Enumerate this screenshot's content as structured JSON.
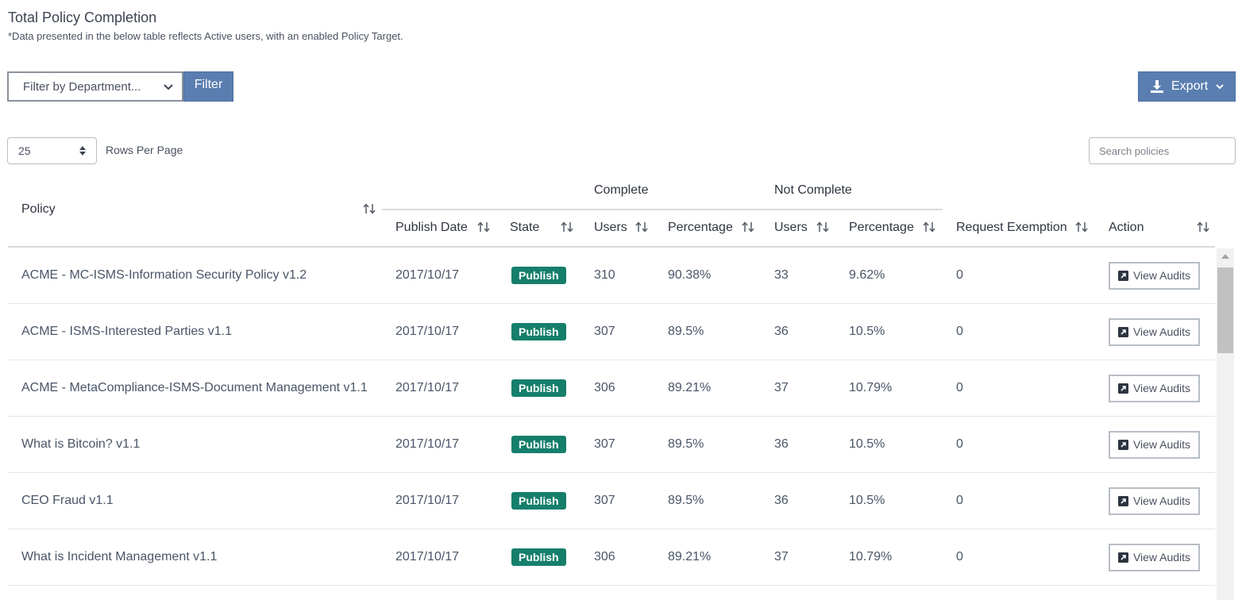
{
  "header": {
    "title": "Total Policy Completion",
    "subtitle": "*Data presented in the below table reflects Active users, with an enabled Policy Target."
  },
  "toolbar": {
    "department_select": "Filter by Department...",
    "filter_label": "Filter",
    "export_label": "Export"
  },
  "pagination": {
    "rows_per_page_value": "25",
    "rows_per_page_label": "Rows Per Page"
  },
  "search": {
    "placeholder": "Search policies"
  },
  "table": {
    "group_headers": {
      "complete": "Complete",
      "not_complete": "Not Complete"
    },
    "columns": {
      "policy": "Policy",
      "publish_date": "Publish Date",
      "state": "State",
      "complete_users": "Users",
      "complete_percentage": "Percentage",
      "not_complete_users": "Users",
      "not_complete_percentage": "Percentage",
      "request_exemption": "Request Exemption",
      "action": "Action"
    },
    "action_label": "View Audits",
    "rows": [
      {
        "policy": "ACME - MC-ISMS-Information Security Policy v1.2",
        "publish_date": "2017/10/17",
        "state": "Publish",
        "complete_users": "310",
        "complete_pct": "90.38%",
        "not_complete_users": "33",
        "not_complete_pct": "9.62%",
        "request_exemption": "0"
      },
      {
        "policy": "ACME - ISMS-Interested Parties v1.1",
        "publish_date": "2017/10/17",
        "state": "Publish",
        "complete_users": "307",
        "complete_pct": "89.5%",
        "not_complete_users": "36",
        "not_complete_pct": "10.5%",
        "request_exemption": "0"
      },
      {
        "policy": "ACME - MetaCompliance-ISMS-Document Management v1.1",
        "publish_date": "2017/10/17",
        "state": "Publish",
        "complete_users": "306",
        "complete_pct": "89.21%",
        "not_complete_users": "37",
        "not_complete_pct": "10.79%",
        "request_exemption": "0"
      },
      {
        "policy": "What is Bitcoin? v1.1",
        "publish_date": "2017/10/17",
        "state": "Publish",
        "complete_users": "307",
        "complete_pct": "89.5%",
        "not_complete_users": "36",
        "not_complete_pct": "10.5%",
        "request_exemption": "0"
      },
      {
        "policy": "CEO Fraud v1.1",
        "publish_date": "2017/10/17",
        "state": "Publish",
        "complete_users": "307",
        "complete_pct": "89.5%",
        "not_complete_users": "36",
        "not_complete_pct": "10.5%",
        "request_exemption": "0"
      },
      {
        "policy": "What is Incident Management v1.1",
        "publish_date": "2017/10/17",
        "state": "Publish",
        "complete_users": "306",
        "complete_pct": "89.21%",
        "not_complete_users": "37",
        "not_complete_pct": "10.79%",
        "request_exemption": "0"
      }
    ]
  },
  "colors": {
    "primary_button": "#5a7eb0",
    "publish_badge": "#157f6b"
  },
  "icons": {
    "sort": "sort-arrows-icon",
    "export": "download-icon",
    "action": "external-link-icon"
  }
}
